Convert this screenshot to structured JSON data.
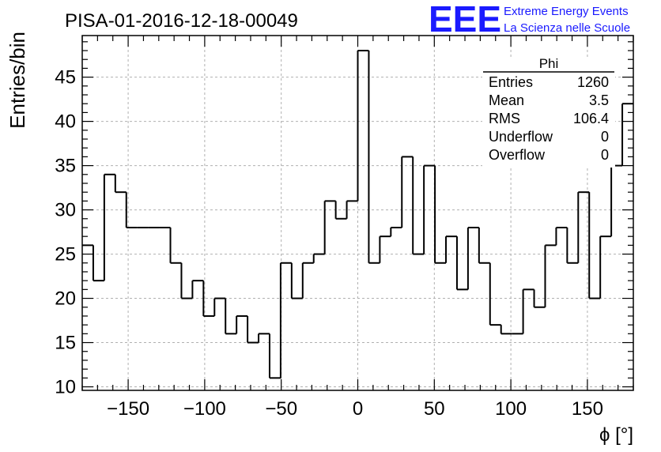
{
  "title": "PISA-01-2016-12-18-00049",
  "logo": {
    "mark": "EEE",
    "line1": "Extreme Energy Events",
    "line2": "La Scienza nelle Scuole",
    "color": "#1a1aff"
  },
  "stats": {
    "name": "Phi",
    "rows": [
      {
        "label": "Entries",
        "value": "1260"
      },
      {
        "label": "Mean",
        "value": "3.5"
      },
      {
        "label": "RMS",
        "value": "106.4"
      },
      {
        "label": "Underflow",
        "value": "0"
      },
      {
        "label": "Overflow",
        "value": "0"
      }
    ]
  },
  "chart_data": {
    "type": "histogram",
    "xlabel": "ϕ [°]",
    "ylabel": "Entries/bin",
    "xlim": [
      -180,
      180
    ],
    "ylim": [
      9.6,
      49.7
    ],
    "bin_width": 7.2,
    "x_ticks": [
      -150,
      -100,
      -50,
      0,
      50,
      100,
      150
    ],
    "x_tick_labels": [
      "−150",
      "−100",
      "−50",
      "0",
      "50",
      "100",
      "150"
    ],
    "y_ticks": [
      10,
      15,
      20,
      25,
      30,
      35,
      40,
      45
    ],
    "y_tick_labels": [
      "10",
      "15",
      "20",
      "25",
      "30",
      "35",
      "40",
      "45"
    ],
    "grid": true,
    "values": [
      26,
      22,
      34,
      32,
      28,
      28,
      28,
      28,
      24,
      20,
      22,
      18,
      20,
      16,
      18,
      15,
      16,
      11,
      24,
      20,
      24,
      25,
      31,
      29,
      31,
      48,
      24,
      27,
      28,
      36,
      25,
      35,
      24,
      27,
      21,
      28,
      24,
      17,
      16,
      16,
      21,
      19,
      26,
      28,
      24,
      32,
      20,
      27,
      35,
      42
    ],
    "line_color": "#000000"
  }
}
